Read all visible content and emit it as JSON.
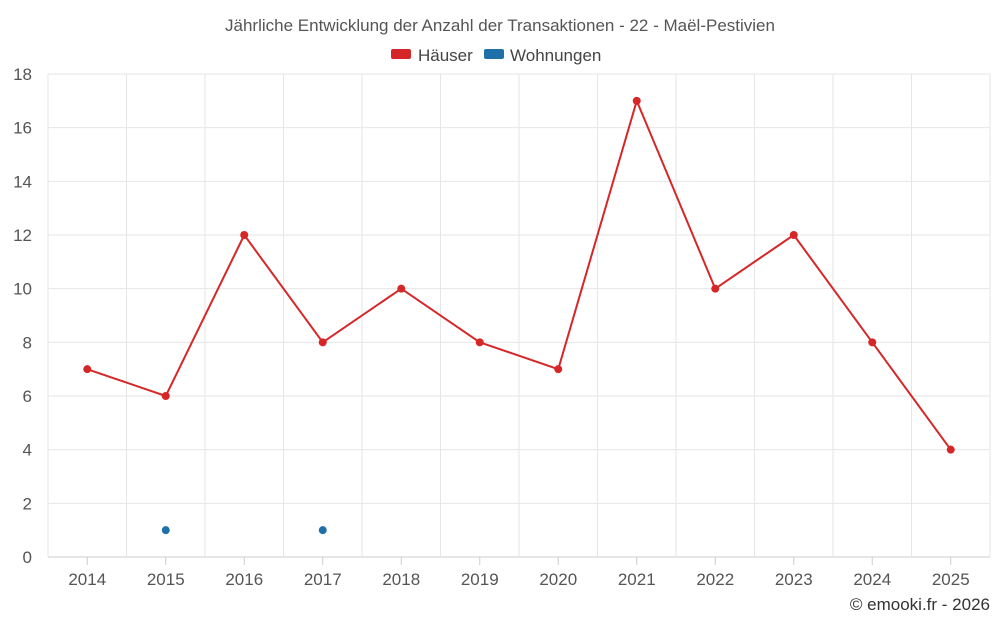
{
  "chart_data": {
    "type": "line",
    "title": "Jährliche Entwicklung der Anzahl der Transaktionen - 22 - Maël-Pestivien",
    "categories": [
      "2014",
      "2015",
      "2016",
      "2017",
      "2018",
      "2019",
      "2020",
      "2021",
      "2022",
      "2023",
      "2024",
      "2025"
    ],
    "y_ticks": [
      "0",
      "2",
      "4",
      "6",
      "8",
      "10",
      "12",
      "14",
      "16",
      "18"
    ],
    "ylim": [
      0,
      18
    ],
    "grid": true,
    "legend_position": "top-center",
    "series": [
      {
        "name": "Häuser",
        "color": "#d62728",
        "values": [
          7,
          6,
          12,
          8,
          10,
          8,
          7,
          17,
          10,
          12,
          8,
          4
        ]
      },
      {
        "name": "Wohnungen",
        "color": "#1f6fa8",
        "values": [
          null,
          1,
          null,
          1,
          null,
          null,
          null,
          null,
          null,
          null,
          null,
          null
        ]
      }
    ]
  },
  "footer": {
    "credit": "© emooki.fr - 2026"
  }
}
